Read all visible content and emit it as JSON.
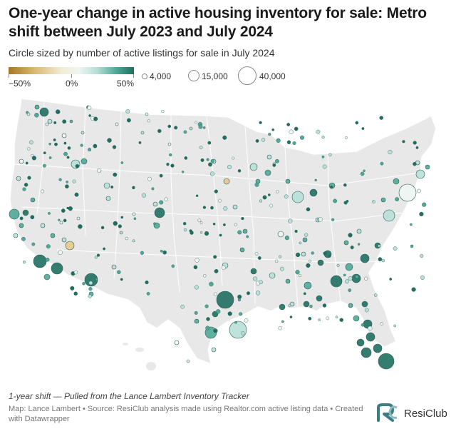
{
  "header": {
    "title": "One-year change in active housing inventory for sale: Metro shift between July 2023 and July 2024",
    "subtitle": "Circle sized by number of active listings for sale in July 2024"
  },
  "legend": {
    "color_ticks": [
      "−50%",
      "0%",
      "50%"
    ],
    "size_labels": [
      "4,000",
      "15,000",
      "40,000"
    ],
    "colors": {
      "neg_50": "#a87625",
      "zero": "#f3efe0",
      "pos_50": "#1f6f61"
    }
  },
  "map": {
    "land_color": "#e8e8e8",
    "border_color": "#ffffff",
    "bubble_stroke": "#2b5d55"
  },
  "footer": {
    "note": "1-year shift — Pulled from the Lance Lambert Inventory Tracker",
    "credit": "Map: Lance Lambert • Source: ResiClub analysis made using Realtor.com active listing data • Created with Datawrapper",
    "brand": "ResiClub",
    "brand_icon": "rc-logo-icon"
  }
}
